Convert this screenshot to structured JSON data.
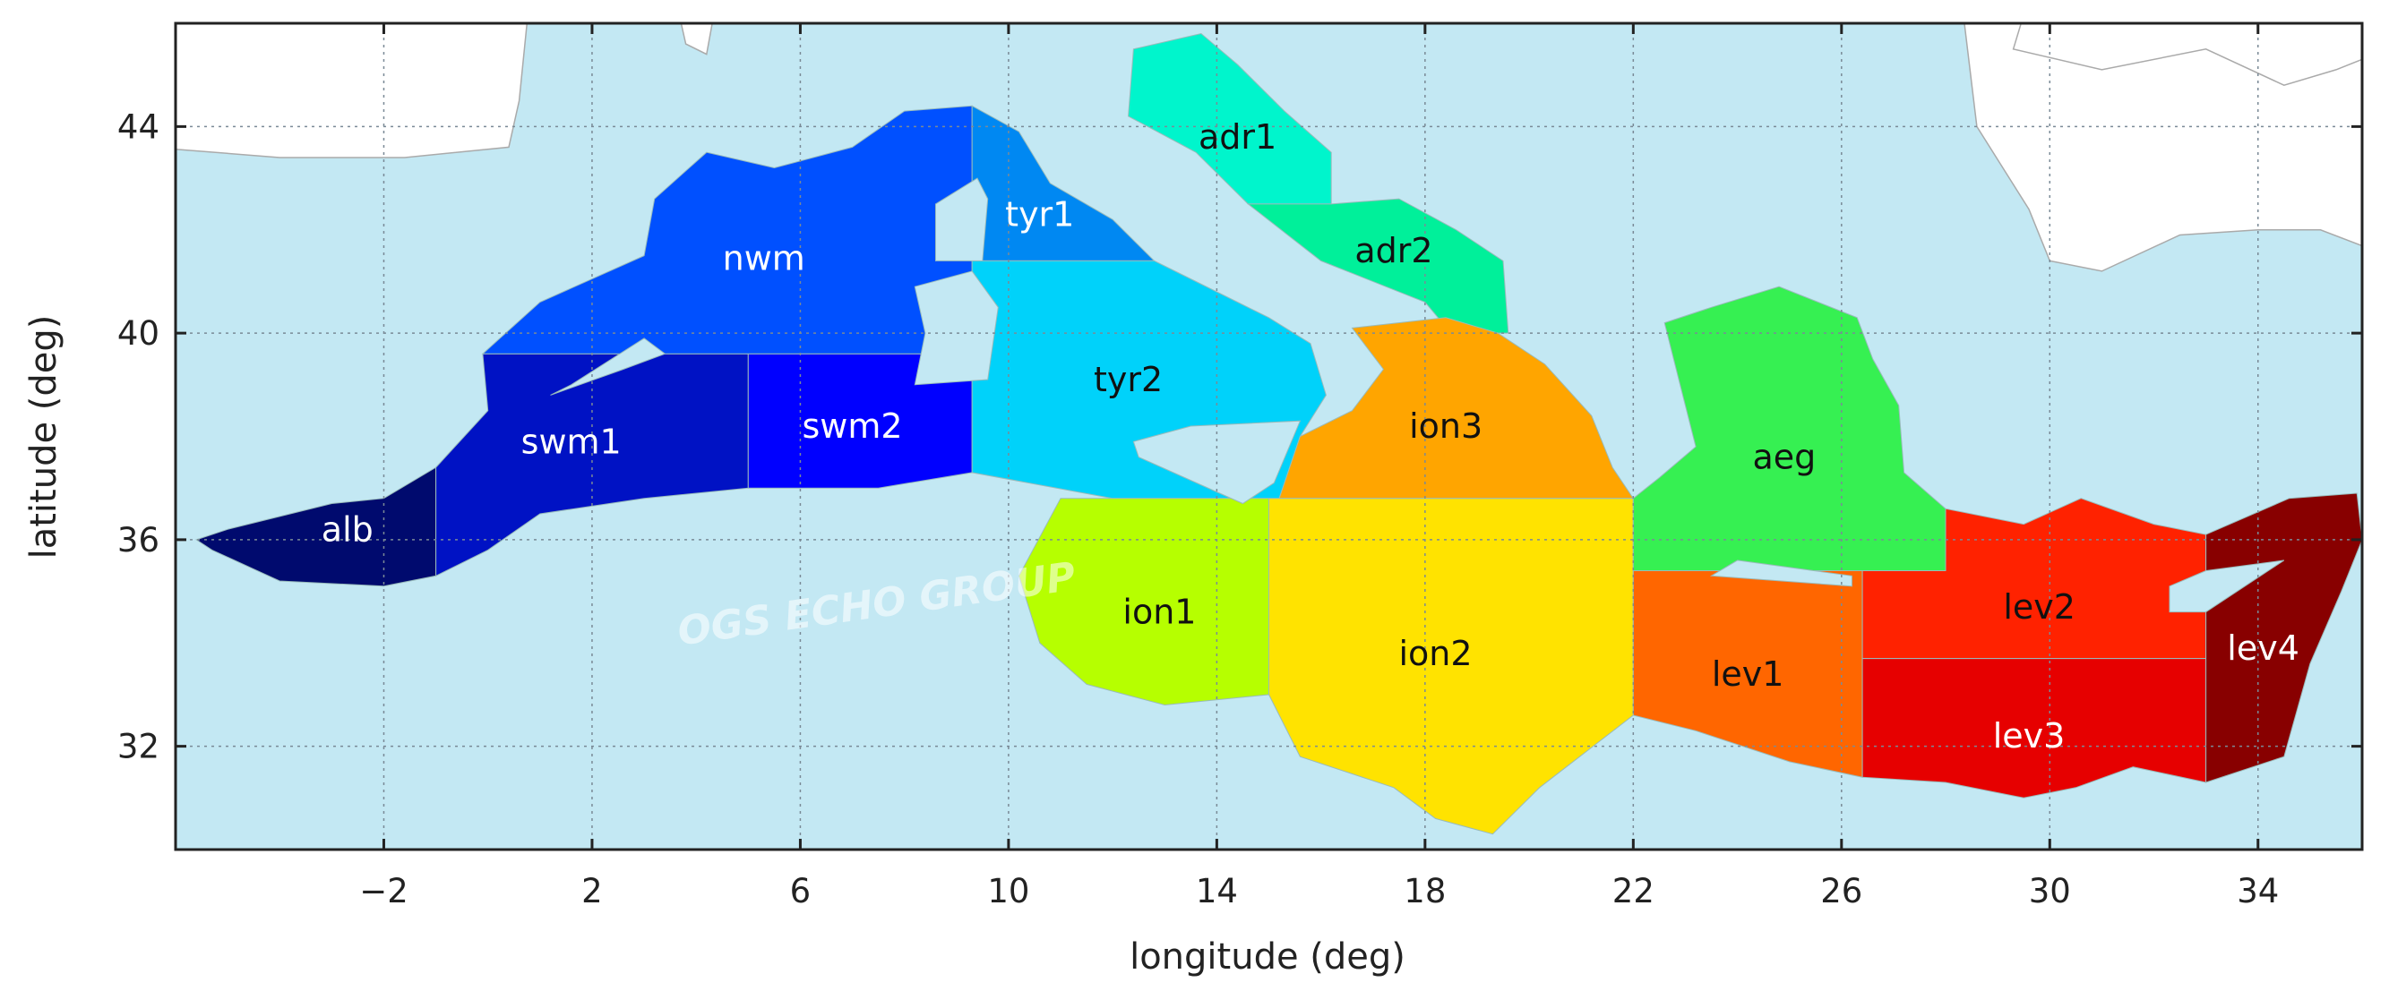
{
  "map": {
    "xlabel": "longitude (deg)",
    "ylabel": "latitude (deg)",
    "xlim": [
      -6,
      36
    ],
    "ylim": [
      30,
      46
    ],
    "xticks": [
      {
        "value": -2,
        "label": "−2"
      },
      2,
      6,
      10,
      14,
      18,
      22,
      26,
      30,
      34
    ],
    "yticks": [
      32,
      36,
      40,
      44
    ],
    "grid": true,
    "sea_color": "#c3e8f3",
    "land_color": "#ffffff",
    "watermark": "OGS ECHO GROUP",
    "regions": [
      {
        "name": "alb",
        "color": "#000a6e",
        "label_color": "#ffffff"
      },
      {
        "name": "swm1",
        "color": "#0012c4",
        "label_color": "#ffffff"
      },
      {
        "name": "swm2",
        "color": "#0000ff",
        "label_color": "#ffffff"
      },
      {
        "name": "nwm",
        "color": "#0050ff",
        "label_color": "#ffffff"
      },
      {
        "name": "tyr1",
        "color": "#0088f2",
        "label_color": "#ffffff"
      },
      {
        "name": "tyr2",
        "color": "#00d2fa",
        "label_color": "#111111"
      },
      {
        "name": "adr1",
        "color": "#00f5cc",
        "label_color": "#111111"
      },
      {
        "name": "adr2",
        "color": "#00f09a",
        "label_color": "#111111"
      },
      {
        "name": "ion3",
        "color": "#ffa500",
        "label_color": "#111111"
      },
      {
        "name": "ion1",
        "color": "#b6ff00",
        "label_color": "#111111"
      },
      {
        "name": "ion2",
        "color": "#ffe300",
        "label_color": "#111111"
      },
      {
        "name": "aeg",
        "color": "#36f052",
        "label_color": "#111111"
      },
      {
        "name": "lev1",
        "color": "#ff6600",
        "label_color": "#111111"
      },
      {
        "name": "lev2",
        "color": "#ff2200",
        "label_color": "#111111"
      },
      {
        "name": "lev3",
        "color": "#e60000",
        "label_color": "#ffffff"
      },
      {
        "name": "lev4",
        "color": "#880000",
        "label_color": "#ffffff"
      }
    ]
  }
}
